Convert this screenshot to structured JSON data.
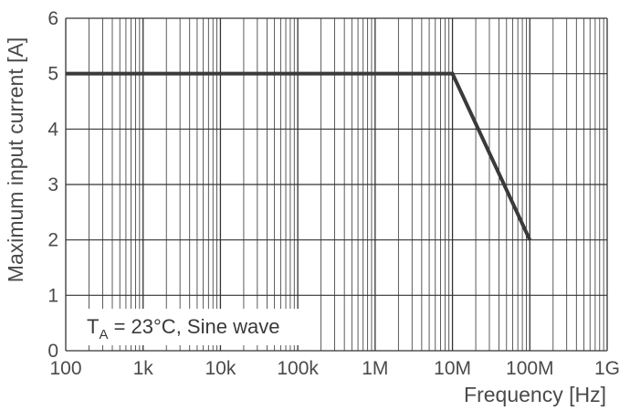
{
  "chart_data": {
    "type": "line",
    "title": "",
    "xlabel": "Frequency [Hz]",
    "ylabel": "Maximum input current [A]",
    "xscale": "log",
    "xlim": [
      100,
      1000000000
    ],
    "ylim": [
      0,
      6
    ],
    "grid": true,
    "x_ticks": [
      {
        "value": 100,
        "label": "100"
      },
      {
        "value": 1000,
        "label": "1k"
      },
      {
        "value": 10000,
        "label": "10k"
      },
      {
        "value": 100000,
        "label": "100k"
      },
      {
        "value": 1000000,
        "label": "1M"
      },
      {
        "value": 10000000,
        "label": "10M"
      },
      {
        "value": 100000000,
        "label": "100M"
      },
      {
        "value": 1000000000,
        "label": "1G"
      }
    ],
    "y_ticks": [
      0,
      1,
      2,
      3,
      4,
      5,
      6
    ],
    "series": [
      {
        "name": "Maximum input current",
        "x": [
          100,
          10000000,
          100000000
        ],
        "y": [
          5,
          5,
          2
        ]
      }
    ],
    "annotation": {
      "main": "T",
      "subscript": "A",
      "rest": " = 23°C, Sine wave"
    },
    "colors": {
      "line": "#3a3a3a",
      "grid": "#333333",
      "text": "#4a4a4a"
    }
  }
}
